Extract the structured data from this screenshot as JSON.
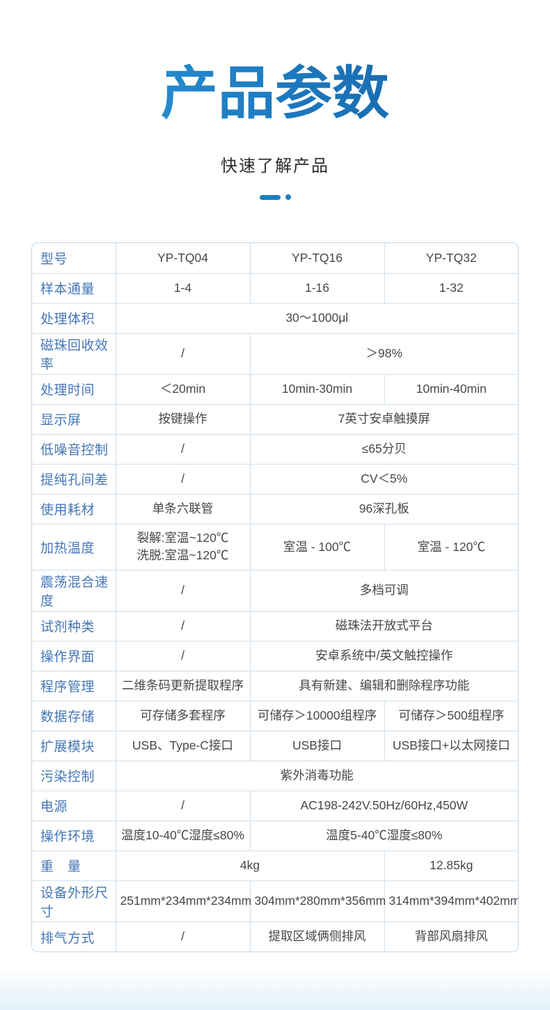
{
  "header": {
    "title": "产品参数",
    "subtitle": "快速了解产品"
  },
  "colors": {
    "accent_blue": "#1c7fc0",
    "title_gradient_start": "#2ea2dd",
    "title_gradient_end": "#145a9e",
    "label_blue": "#4577b7",
    "cell_text": "#47474d",
    "table_border": "#cfe0ec"
  },
  "table": {
    "columns": [
      "label",
      "YP-TQ04",
      "YP-TQ16",
      "YP-TQ32"
    ],
    "rows": [
      {
        "label": "型号",
        "cells": [
          {
            "text": "YP-TQ04",
            "span": 1
          },
          {
            "text": "YP-TQ16",
            "span": 1
          },
          {
            "text": "YP-TQ32",
            "span": 1
          }
        ]
      },
      {
        "label": "样本通量",
        "cells": [
          {
            "text": "1-4",
            "span": 1
          },
          {
            "text": "1-16",
            "span": 1
          },
          {
            "text": "1-32",
            "span": 1
          }
        ]
      },
      {
        "label": "处理体积",
        "cells": [
          {
            "text": "30～1000μl",
            "span": 3
          }
        ]
      },
      {
        "label": "磁珠回收效率",
        "cells": [
          {
            "text": "/",
            "span": 1
          },
          {
            "text": "＞98%",
            "span": 2
          }
        ]
      },
      {
        "label": "处理时间",
        "cells": [
          {
            "text": "＜20min",
            "span": 1
          },
          {
            "text": "10min-30min",
            "span": 1
          },
          {
            "text": "10min-40min",
            "span": 1
          }
        ]
      },
      {
        "label": "显示屏",
        "cells": [
          {
            "text": "按键操作",
            "span": 1
          },
          {
            "text": "7英寸安卓触摸屏",
            "span": 2
          }
        ]
      },
      {
        "label": "低噪音控制",
        "cells": [
          {
            "text": "/",
            "span": 1
          },
          {
            "text": "≤65分贝",
            "span": 2
          }
        ]
      },
      {
        "label": "提纯孔间差",
        "cells": [
          {
            "text": "/",
            "span": 1
          },
          {
            "text": "CV＜5%",
            "span": 2
          }
        ]
      },
      {
        "label": "使用耗材",
        "cells": [
          {
            "text": "单条六联管",
            "span": 1
          },
          {
            "text": "96深孔板",
            "span": 2
          }
        ]
      },
      {
        "label": "加热温度",
        "tall": true,
        "cells": [
          {
            "text": "裂解:室温~120℃\n洗脱:室温~120℃",
            "span": 1
          },
          {
            "text": "室温 - 100℃",
            "span": 1
          },
          {
            "text": "室温 - 120℃",
            "span": 1
          }
        ]
      },
      {
        "label": "震荡混合速度",
        "cells": [
          {
            "text": "/",
            "span": 1
          },
          {
            "text": "多档可调",
            "span": 2
          }
        ]
      },
      {
        "label": "试剂种类",
        "cells": [
          {
            "text": "/",
            "span": 1
          },
          {
            "text": "磁珠法开放式平台",
            "span": 2
          }
        ]
      },
      {
        "label": "操作界面",
        "cells": [
          {
            "text": "/",
            "span": 1
          },
          {
            "text": "安卓系统中/英文触控操作",
            "span": 2
          }
        ]
      },
      {
        "label": "程序管理",
        "cells": [
          {
            "text": "二维条码更新提取程序",
            "span": 1
          },
          {
            "text": "具有新建、编辑和删除程序功能",
            "span": 2
          }
        ]
      },
      {
        "label": "数据存储",
        "cells": [
          {
            "text": "可存储多套程序",
            "span": 1
          },
          {
            "text": "可储存＞10000组程序",
            "span": 1
          },
          {
            "text": "可储存＞500组程序",
            "span": 1
          }
        ]
      },
      {
        "label": "扩展模块",
        "cells": [
          {
            "text": "USB、Type-C接口",
            "span": 1
          },
          {
            "text": "USB接口",
            "span": 1
          },
          {
            "text": "USB接口+以太网接口",
            "span": 1
          }
        ]
      },
      {
        "label": "污染控制",
        "cells": [
          {
            "text": "紫外消毒功能",
            "span": 3
          }
        ]
      },
      {
        "label": "电源",
        "cells": [
          {
            "text": "/",
            "span": 1
          },
          {
            "text": "AC198-242V.50Hz/60Hz,450W",
            "span": 2
          }
        ]
      },
      {
        "label": "操作环境",
        "cells": [
          {
            "text": "温度10-40℃湿度≤80%",
            "span": 1
          },
          {
            "text": "温度5-40℃湿度≤80%",
            "span": 2
          }
        ]
      },
      {
        "label": "重　量",
        "cells": [
          {
            "text": "4kg",
            "span": 2
          },
          {
            "text": "12.85kg",
            "span": 1
          }
        ]
      },
      {
        "label": "设备外形尺寸",
        "cells": [
          {
            "text": "251mm*234mm*234mm",
            "span": 1
          },
          {
            "text": "304mm*280mm*356mm",
            "span": 1
          },
          {
            "text": "314mm*394mm*402mm",
            "span": 1
          }
        ]
      },
      {
        "label": "排气方式",
        "cells": [
          {
            "text": "/",
            "span": 1
          },
          {
            "text": "提取区域俩侧排风",
            "span": 1
          },
          {
            "text": "背部风扇排风",
            "span": 1
          }
        ]
      }
    ]
  }
}
